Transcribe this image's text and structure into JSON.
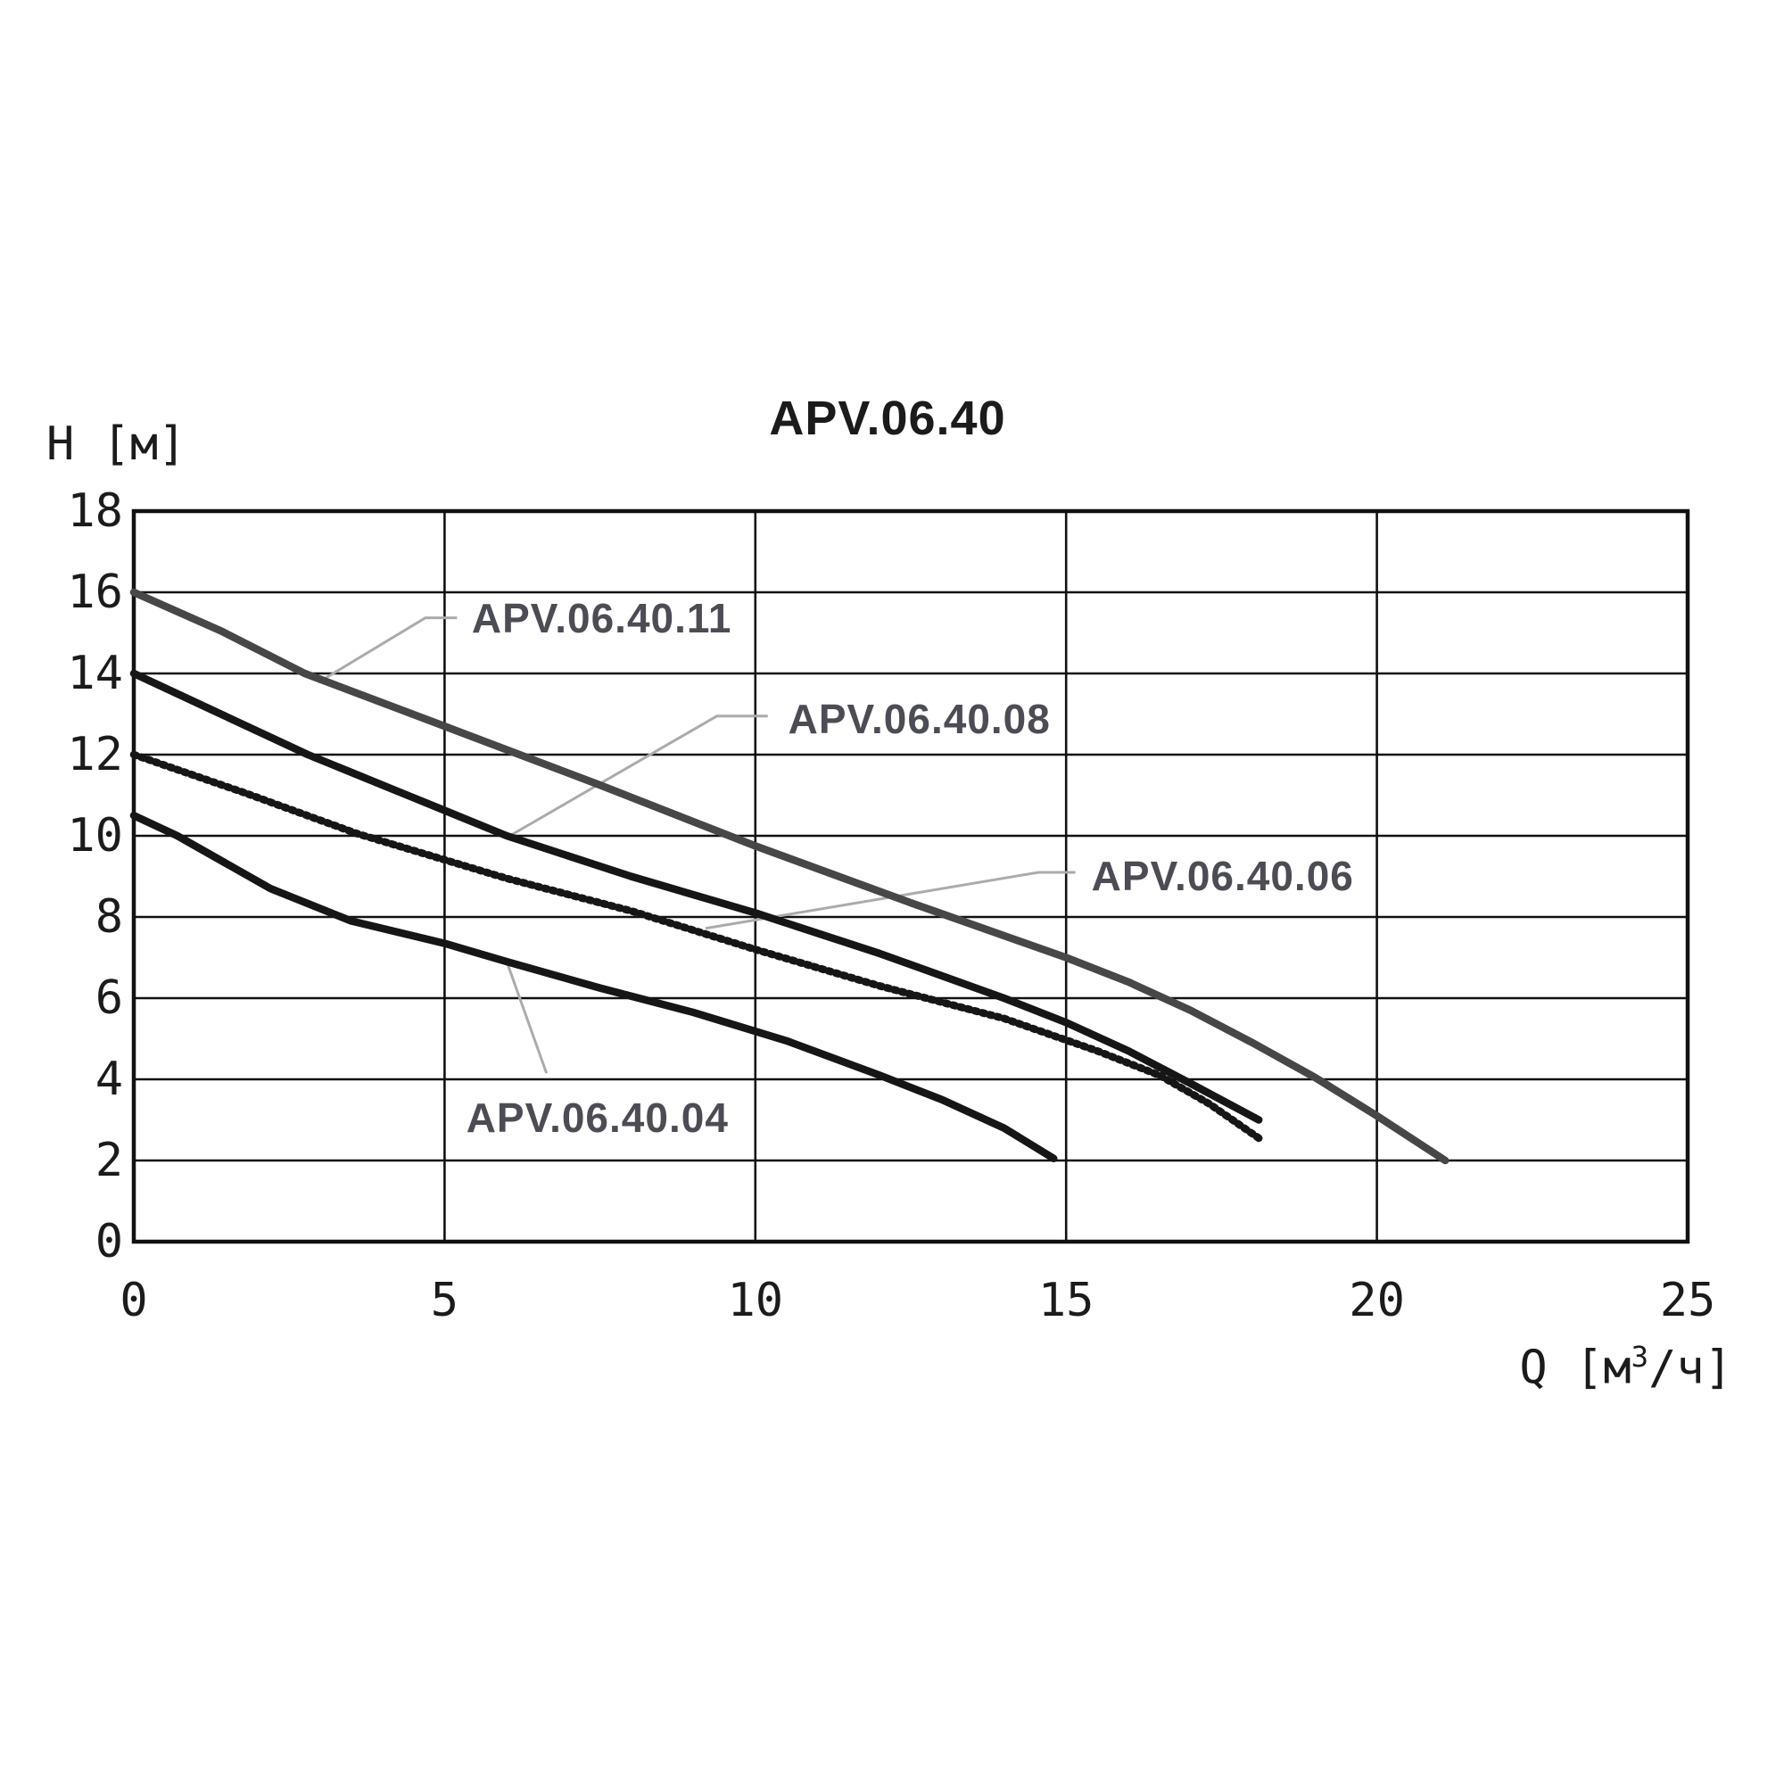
{
  "title": "APV.06.40",
  "chart_data": {
    "type": "line",
    "title": "APV.06.40",
    "xlabel": "Q [м³/ч]",
    "ylabel": "H [м]",
    "xlim": [
      0,
      25
    ],
    "ylim": [
      0,
      18
    ],
    "x_ticks": [
      0,
      5,
      10,
      15,
      20,
      25
    ],
    "y_ticks": [
      0,
      2,
      4,
      6,
      8,
      10,
      12,
      14,
      16,
      18
    ],
    "grid": true,
    "legend_position": "inline-annotations",
    "colors": {
      "grid_line": "#111111",
      "border": "#111111",
      "curve_dark": "#161616",
      "curve_gray": "#474747",
      "leader_line": "#ababab",
      "label_text": "#4c4c54",
      "axis_text": "#1b1b1b"
    },
    "series": [
      {
        "name": "APV.06.40.11",
        "style": "solid",
        "color": "#474747",
        "points": [
          [
            0,
            16
          ],
          [
            1.4,
            15.05
          ],
          [
            2.75,
            14.0
          ],
          [
            5,
            12.7
          ],
          [
            7.5,
            11.25
          ],
          [
            10,
            9.75
          ],
          [
            12.5,
            8.35
          ],
          [
            15,
            7.0
          ],
          [
            16,
            6.4
          ],
          [
            17,
            5.7
          ],
          [
            18,
            4.9
          ],
          [
            19,
            4.05
          ],
          [
            20,
            3.1
          ],
          [
            21.1,
            2.0
          ]
        ]
      },
      {
        "name": "APV.06.40.08",
        "style": "solid",
        "color": "#161616",
        "points": [
          [
            0,
            14
          ],
          [
            1.4,
            13.0
          ],
          [
            2.8,
            12.0
          ],
          [
            4.4,
            11.0
          ],
          [
            6,
            10.0
          ],
          [
            8,
            9.0
          ],
          [
            10,
            8.1
          ],
          [
            12,
            7.1
          ],
          [
            14,
            6.0
          ],
          [
            15,
            5.4
          ],
          [
            16,
            4.7
          ],
          [
            17,
            3.9
          ],
          [
            18.1,
            3.0
          ]
        ]
      },
      {
        "name": "APV.06.40.06",
        "style": "dotted",
        "color": "#161616",
        "points": [
          [
            0,
            12
          ],
          [
            1.8,
            11.05
          ],
          [
            3.6,
            10.05
          ],
          [
            6,
            8.95
          ],
          [
            8,
            8.15
          ],
          [
            10,
            7.2
          ],
          [
            12,
            6.3
          ],
          [
            14,
            5.5
          ],
          [
            15.5,
            4.7
          ],
          [
            16.5,
            4.1
          ],
          [
            17.3,
            3.4
          ],
          [
            18.1,
            2.55
          ]
        ]
      },
      {
        "name": "APV.06.40.04",
        "style": "solid",
        "color": "#161616",
        "points": [
          [
            0,
            10.5
          ],
          [
            0.7,
            10.0
          ],
          [
            2.2,
            8.7
          ],
          [
            3.5,
            7.9
          ],
          [
            5,
            7.35
          ],
          [
            6,
            6.9
          ],
          [
            7.5,
            6.25
          ],
          [
            9,
            5.65
          ],
          [
            10.5,
            4.95
          ],
          [
            12,
            4.1
          ],
          [
            13,
            3.5
          ],
          [
            14,
            2.8
          ],
          [
            14.8,
            2.05
          ]
        ]
      }
    ],
    "annotations": [
      {
        "text": "APV.06.40.11",
        "anchor": [
          7.53,
          15.36
        ],
        "leader": [
          [
            2.97,
            13.78
          ],
          [
            4.69,
            15.37
          ],
          [
            5.2,
            15.37
          ]
        ]
      },
      {
        "text": "APV.06.40.08",
        "anchor": [
          12.64,
          12.88
        ],
        "leader": [
          [
            6.05,
            10.0
          ],
          [
            9.38,
            12.95
          ],
          [
            10.2,
            12.95
          ]
        ]
      },
      {
        "text": "APV.06.40.06",
        "anchor": [
          17.52,
          9.01
        ],
        "leader": [
          [
            9.2,
            7.72
          ],
          [
            14.56,
            9.1
          ],
          [
            15.15,
            9.1
          ]
        ]
      },
      {
        "text": "APV.06.40.04",
        "anchor": [
          7.46,
          3.05
        ],
        "leader": [
          [
            6.0,
            6.9
          ],
          [
            6.64,
            4.15
          ]
        ]
      }
    ]
  }
}
